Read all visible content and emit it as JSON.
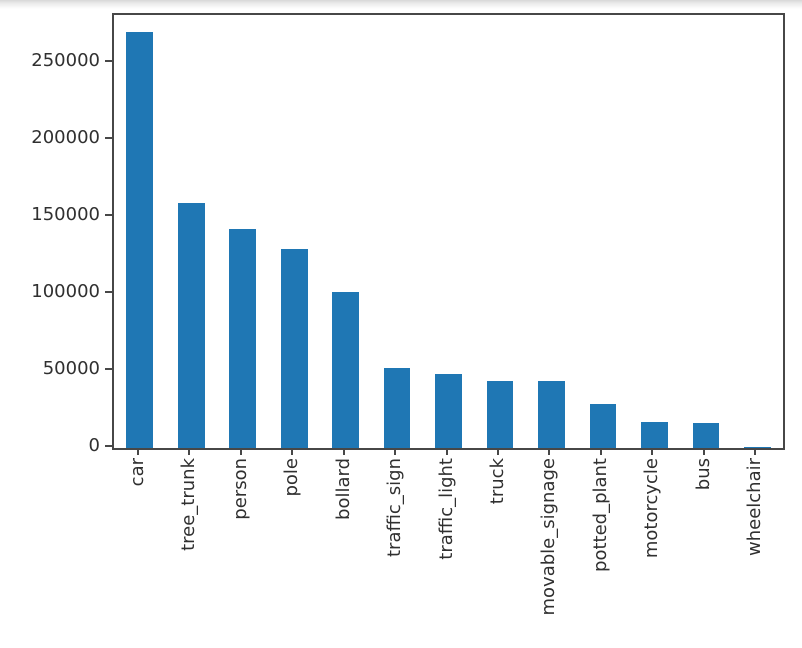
{
  "chart_data": {
    "type": "bar",
    "title": "",
    "xlabel": "",
    "ylabel": "",
    "categories": [
      "car",
      "tree_trunk",
      "person",
      "pole",
      "bollard",
      "traffic_sign",
      "traffic_light",
      "truck",
      "movable_signage",
      "potted_plant",
      "motorcycle",
      "bus",
      "wheelchair"
    ],
    "values": [
      270500,
      159500,
      142500,
      129500,
      101500,
      52000,
      48200,
      43400,
      43700,
      28500,
      17200,
      16000,
      400
    ],
    "yticks": [
      0,
      50000,
      100000,
      150000,
      200000,
      250000
    ],
    "ylim": [
      0,
      281500
    ],
    "bar_color": "#1f77b4",
    "axis_color": "#474747",
    "tick_label_color": "#303030",
    "x_tick_rotation_deg": 90,
    "grid": false,
    "legend": null
  }
}
